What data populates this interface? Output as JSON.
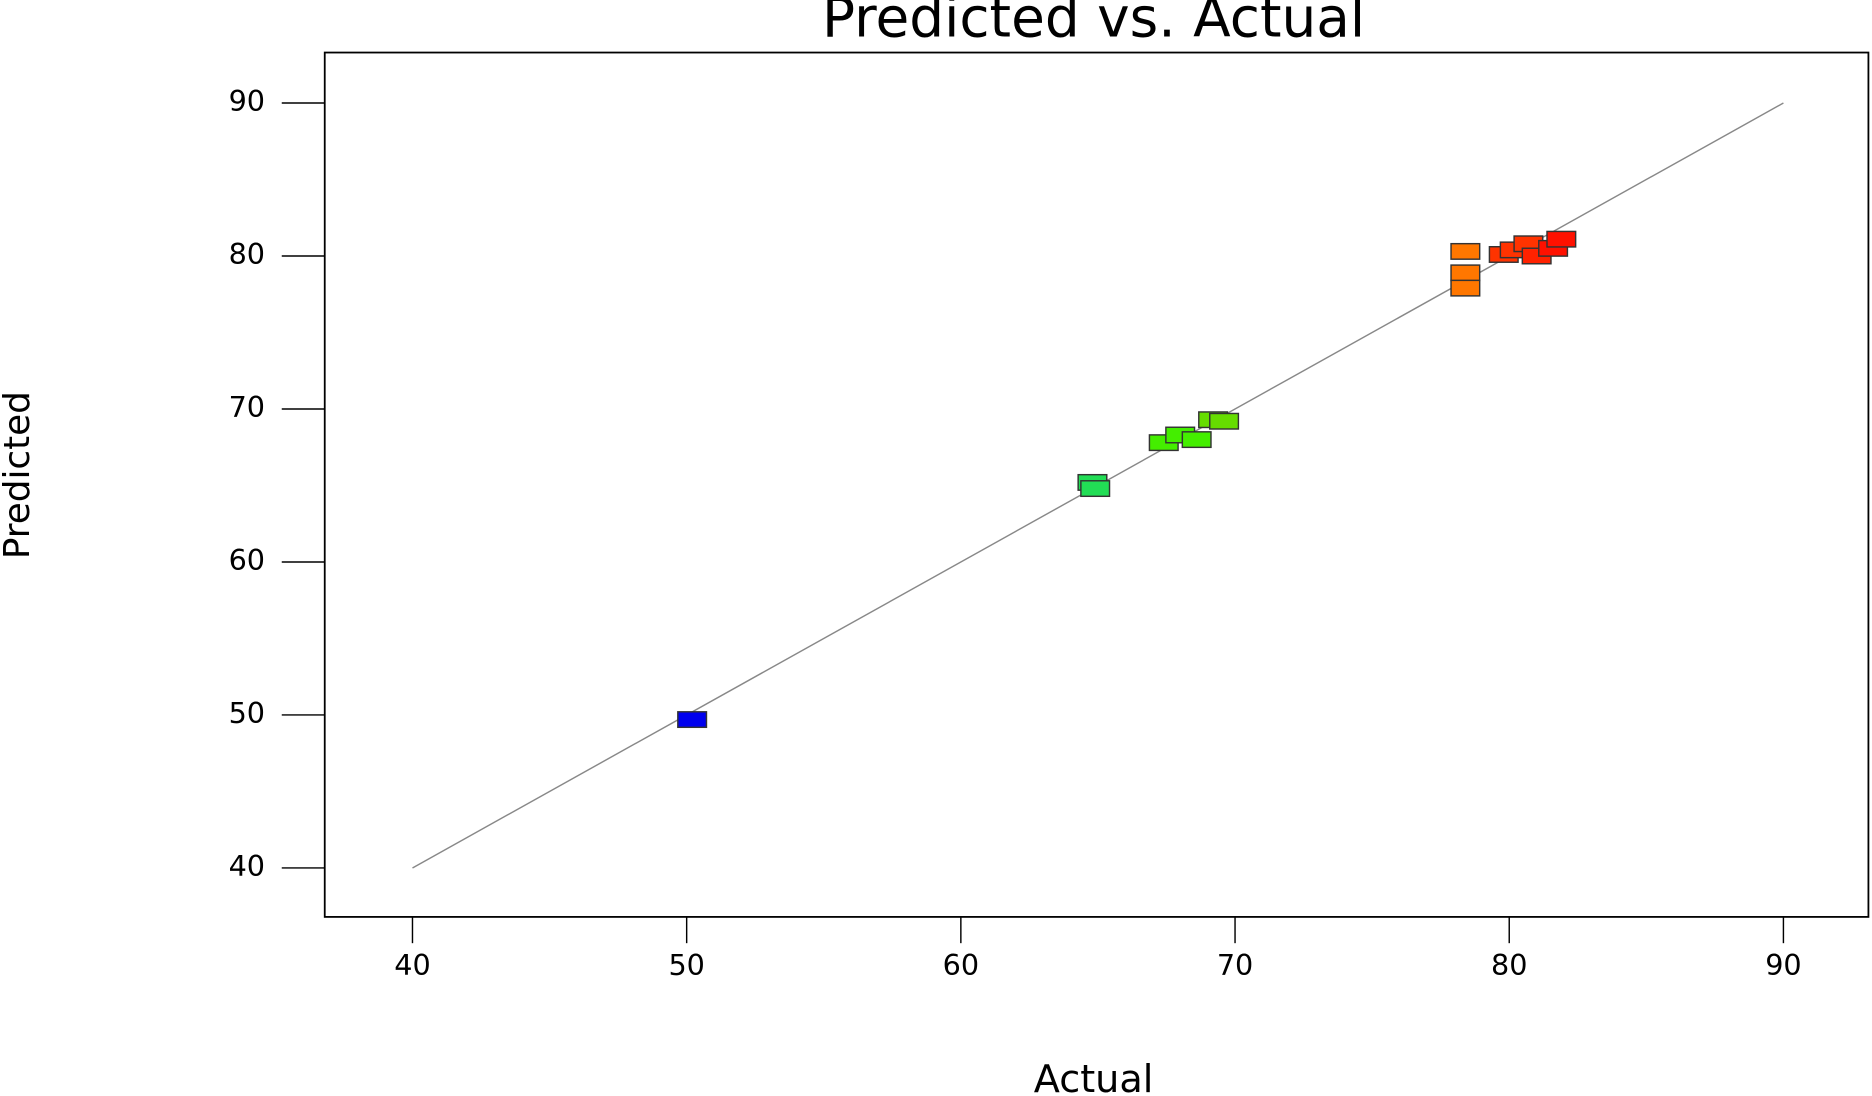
{
  "chart_data": {
    "type": "scatter",
    "title": "Predicted vs. Actual",
    "x_label": "Actual",
    "y_label": "Predicted",
    "x": [
      50.2,
      64.8,
      64.9,
      67.4,
      68.0,
      68.6,
      69.2,
      69.6,
      78.4,
      78.4,
      78.4,
      79.8,
      80.2,
      80.7,
      81.0,
      81.6,
      81.9
    ],
    "values": [
      49.7,
      65.2,
      64.8,
      67.8,
      68.3,
      68.0,
      69.3,
      69.2,
      80.3,
      78.9,
      77.9,
      80.1,
      80.4,
      80.8,
      80.0,
      80.5,
      81.1
    ],
    "colors": [
      "#0000ee",
      "#22dd55",
      "#22dd55",
      "#44ee00",
      "#44ee00",
      "#44ee00",
      "#66dd00",
      "#66dd00",
      "#ff7700",
      "#ff7700",
      "#ff7700",
      "#ff3300",
      "#ff3300",
      "#ff3300",
      "#ff2200",
      "#ff1100",
      "#ff1100"
    ],
    "reference_line": {
      "x": [
        40,
        90
      ],
      "y": [
        40,
        90
      ],
      "color": "#888888"
    },
    "xlim": [
      36.8,
      93.1
    ],
    "ylim": [
      36.8,
      93.3
    ],
    "xticks": [
      40,
      50,
      60,
      70,
      80,
      90
    ],
    "yticks": [
      40,
      50,
      60,
      70,
      80,
      90
    ]
  }
}
